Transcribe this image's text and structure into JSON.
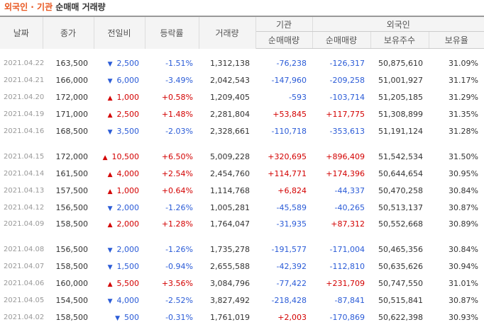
{
  "title": {
    "org": "외국인 · 기관",
    "rest": " 순매매 거래량"
  },
  "headers": {
    "date": "날짜",
    "close": "종가",
    "diff": "전일비",
    "rate": "등락률",
    "volume": "거래량",
    "inst_group": "기관",
    "foreign_group": "외국인",
    "inst_net": "순매매량",
    "foreign_net": "순매매량",
    "holdings": "보유주수",
    "ratio": "보유율"
  },
  "colors": {
    "up": "#d30000",
    "down": "#2a5bd7"
  },
  "groups": [
    {
      "rows": [
        {
          "date": "2021.04.22",
          "close": "163,500",
          "dir": "down",
          "diff": "2,500",
          "rate": "-1.51%",
          "volume": "1,312,138",
          "inst": "-76,238",
          "foreign": "-126,317",
          "holdings": "50,875,610",
          "ratio": "31.09%"
        },
        {
          "date": "2021.04.21",
          "close": "166,000",
          "dir": "down",
          "diff": "6,000",
          "rate": "-3.49%",
          "volume": "2,042,543",
          "inst": "-147,960",
          "foreign": "-209,258",
          "holdings": "51,001,927",
          "ratio": "31.17%"
        },
        {
          "date": "2021.04.20",
          "close": "172,000",
          "dir": "up",
          "diff": "1,000",
          "rate": "+0.58%",
          "volume": "1,209,405",
          "inst": "-593",
          "foreign": "-103,714",
          "holdings": "51,205,185",
          "ratio": "31.29%"
        },
        {
          "date": "2021.04.19",
          "close": "171,000",
          "dir": "up",
          "diff": "2,500",
          "rate": "+1.48%",
          "volume": "2,281,804",
          "inst": "+53,845",
          "foreign": "+117,775",
          "holdings": "51,308,899",
          "ratio": "31.35%"
        },
        {
          "date": "2021.04.16",
          "close": "168,500",
          "dir": "down",
          "diff": "3,500",
          "rate": "-2.03%",
          "volume": "2,328,661",
          "inst": "-110,718",
          "foreign": "-353,613",
          "holdings": "51,191,124",
          "ratio": "31.28%"
        }
      ]
    },
    {
      "rows": [
        {
          "date": "2021.04.15",
          "close": "172,000",
          "dir": "up",
          "diff": "10,500",
          "rate": "+6.50%",
          "volume": "5,009,228",
          "inst": "+320,695",
          "foreign": "+896,409",
          "holdings": "51,542,534",
          "ratio": "31.50%"
        },
        {
          "date": "2021.04.14",
          "close": "161,500",
          "dir": "up",
          "diff": "4,000",
          "rate": "+2.54%",
          "volume": "2,454,760",
          "inst": "+114,771",
          "foreign": "+174,396",
          "holdings": "50,644,654",
          "ratio": "30.95%"
        },
        {
          "date": "2021.04.13",
          "close": "157,500",
          "dir": "up",
          "diff": "1,000",
          "rate": "+0.64%",
          "volume": "1,114,768",
          "inst": "+6,824",
          "foreign": "-44,337",
          "holdings": "50,470,258",
          "ratio": "30.84%"
        },
        {
          "date": "2021.04.12",
          "close": "156,500",
          "dir": "down",
          "diff": "2,000",
          "rate": "-1.26%",
          "volume": "1,005,281",
          "inst": "-45,589",
          "foreign": "-40,265",
          "holdings": "50,513,137",
          "ratio": "30.87%"
        },
        {
          "date": "2021.04.09",
          "close": "158,500",
          "dir": "up",
          "diff": "2,000",
          "rate": "+1.28%",
          "volume": "1,764,047",
          "inst": "-31,935",
          "foreign": "+87,312",
          "holdings": "50,552,668",
          "ratio": "30.89%"
        }
      ]
    },
    {
      "rows": [
        {
          "date": "2021.04.08",
          "close": "156,500",
          "dir": "down",
          "diff": "2,000",
          "rate": "-1.26%",
          "volume": "1,735,278",
          "inst": "-191,577",
          "foreign": "-171,004",
          "holdings": "50,465,356",
          "ratio": "30.84%"
        },
        {
          "date": "2021.04.07",
          "close": "158,500",
          "dir": "down",
          "diff": "1,500",
          "rate": "-0.94%",
          "volume": "2,655,588",
          "inst": "-42,392",
          "foreign": "-112,810",
          "holdings": "50,635,626",
          "ratio": "30.94%"
        },
        {
          "date": "2021.04.06",
          "close": "160,000",
          "dir": "up",
          "diff": "5,500",
          "rate": "+3.56%",
          "volume": "3,084,796",
          "inst": "-77,422",
          "foreign": "+231,709",
          "holdings": "50,747,550",
          "ratio": "31.01%"
        },
        {
          "date": "2021.04.05",
          "close": "154,500",
          "dir": "down",
          "diff": "4,000",
          "rate": "-2.52%",
          "volume": "3,827,492",
          "inst": "-218,428",
          "foreign": "-87,841",
          "holdings": "50,515,841",
          "ratio": "30.87%"
        },
        {
          "date": "2021.04.02",
          "close": "158,500",
          "dir": "down",
          "diff": "500",
          "rate": "-0.31%",
          "volume": "1,761,019",
          "inst": "+2,003",
          "foreign": "-170,869",
          "holdings": "50,622,398",
          "ratio": "30.93%"
        }
      ]
    }
  ]
}
